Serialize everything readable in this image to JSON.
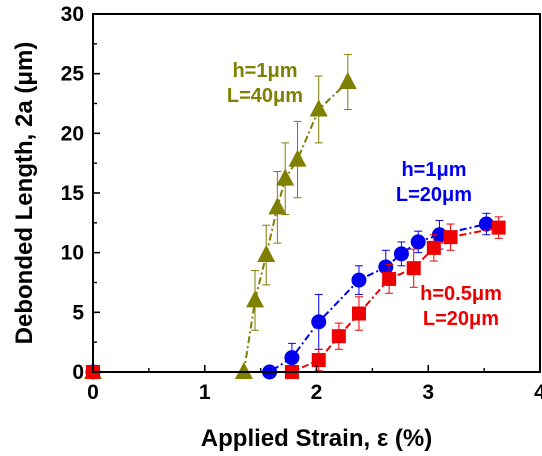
{
  "chart_data": {
    "type": "scatter",
    "xlabel": "Applied Strain, ε (%)",
    "ylabel": "Debonded Length, 2a (μm)",
    "xlim": [
      0,
      4
    ],
    "ylim": [
      0,
      30
    ],
    "xticks": [
      "0",
      "1",
      "2",
      "3",
      "4"
    ],
    "yticks": [
      "0",
      "5",
      "10",
      "15",
      "20",
      "25",
      "30"
    ],
    "grid": false,
    "legend": "none",
    "series": [
      {
        "color": "#7f7f00",
        "marker": "triangle",
        "annotation": [
          "h=1μm",
          "L=40μm"
        ],
        "x": [
          0.0,
          1.35,
          1.45,
          1.55,
          1.65,
          1.72,
          1.83,
          2.02,
          2.28
        ],
        "y": [
          0,
          0,
          6.0,
          9.8,
          13.8,
          16.2,
          17.8,
          22.0,
          24.3
        ],
        "err": [
          0,
          0,
          2.5,
          2.5,
          3.0,
          3.0,
          3.2,
          2.8,
          2.3
        ]
      },
      {
        "color": "#0000ee",
        "marker": "circle",
        "annotation": [
          "h=1μm",
          "L=20μm"
        ],
        "x": [
          0.0,
          1.58,
          1.78,
          2.02,
          2.38,
          2.62,
          2.76,
          2.91,
          3.1,
          3.52
        ],
        "y": [
          0,
          0,
          1.2,
          4.2,
          7.7,
          8.8,
          9.9,
          10.9,
          11.5,
          12.4
        ],
        "err": [
          0,
          0,
          1.2,
          2.3,
          1.2,
          1.4,
          1.0,
          0.9,
          1.2,
          0.9
        ]
      },
      {
        "color": "#ee0000",
        "marker": "square",
        "annotation": [
          "h=0.5μm",
          "L=20μm"
        ],
        "x": [
          0.0,
          1.78,
          2.02,
          2.2,
          2.38,
          2.65,
          2.87,
          3.05,
          3.2,
          3.63
        ],
        "y": [
          0,
          0,
          1.0,
          3.0,
          4.9,
          7.8,
          8.7,
          10.4,
          11.3,
          12.1
        ],
        "err": [
          0,
          0,
          0.9,
          1.1,
          1.4,
          1.2,
          1.6,
          1.1,
          1.1,
          0.9
        ]
      }
    ]
  }
}
